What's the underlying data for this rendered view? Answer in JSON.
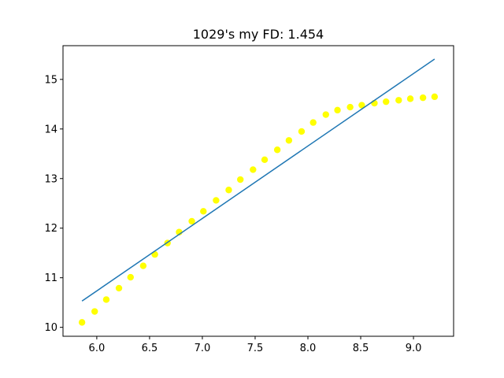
{
  "chart_data": {
    "type": "scatter",
    "title": "1029's my FD: 1.454",
    "xlabel": "",
    "ylabel": "",
    "xlim": [
      5.68,
      9.38
    ],
    "ylim": [
      9.82,
      15.68
    ],
    "x_ticks": [
      "6.0",
      "6.5",
      "7.0",
      "7.5",
      "8.0",
      "8.5",
      "9.0"
    ],
    "y_ticks": [
      "10",
      "11",
      "12",
      "13",
      "14",
      "15"
    ],
    "grid": false,
    "legend": "none",
    "series": [
      {
        "kind": "scatter",
        "color": "#ffff00",
        "points": [
          [
            5.86,
            10.1
          ],
          [
            5.98,
            10.32
          ],
          [
            6.09,
            10.56
          ],
          [
            6.21,
            10.79
          ],
          [
            6.32,
            11.01
          ],
          [
            6.44,
            11.24
          ],
          [
            6.55,
            11.47
          ],
          [
            6.67,
            11.7
          ],
          [
            6.78,
            11.92
          ],
          [
            6.9,
            12.14
          ],
          [
            7.01,
            12.34
          ],
          [
            7.13,
            12.56
          ],
          [
            7.25,
            12.77
          ],
          [
            7.36,
            12.98
          ],
          [
            7.48,
            13.18
          ],
          [
            7.59,
            13.38
          ],
          [
            7.71,
            13.58
          ],
          [
            7.82,
            13.77
          ],
          [
            7.94,
            13.95
          ],
          [
            8.05,
            14.13
          ],
          [
            8.17,
            14.29
          ],
          [
            8.28,
            14.38
          ],
          [
            8.4,
            14.44
          ],
          [
            8.51,
            14.48
          ],
          [
            8.63,
            14.52
          ],
          [
            8.74,
            14.55
          ],
          [
            8.86,
            14.58
          ],
          [
            8.97,
            14.61
          ],
          [
            9.09,
            14.63
          ],
          [
            9.2,
            14.65
          ]
        ]
      },
      {
        "kind": "line",
        "color": "#1f77b4",
        "points": [
          [
            5.86,
            10.53
          ],
          [
            9.2,
            15.41
          ]
        ]
      }
    ]
  }
}
